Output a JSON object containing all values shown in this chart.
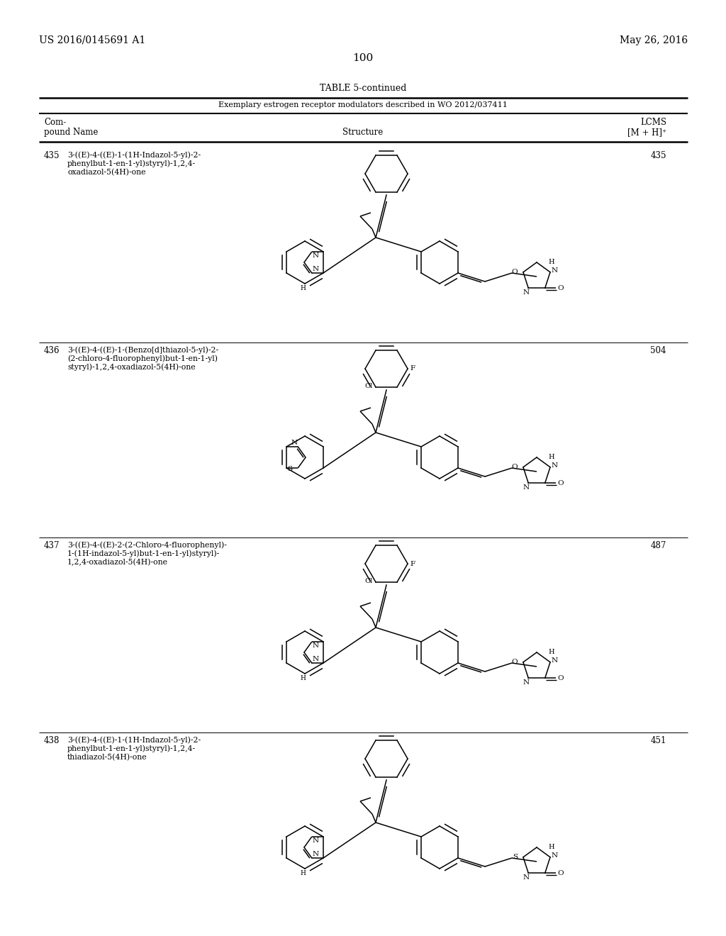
{
  "page_number": "100",
  "header_left": "US 2016/0145691 A1",
  "header_right": "May 26, 2016",
  "table_title": "TABLE 5-continued",
  "table_subtitle": "Exemplary estrogen receptor modulators described in WO 2012/037411",
  "compounds": [
    {
      "number": "435",
      "name": "3-((E)-4-((E)-1-(1H-Indazol-5-yl)-2-\nphenylbut-1-en-1-yl)styryl)-1,2,4-\noxadiazol-5(4H)-one",
      "lcms": "435",
      "left_group": "indazole",
      "top_group": "phenyl",
      "right_end": "oxadiazolone"
    },
    {
      "number": "436",
      "name": "3-((E)-4-((E)-1-(Benzo[d]thiazol-5-yl)-2-\n(2-chloro-4-fluorophenyl)but-1-en-1-yl)\nstyryl)-1,2,4-oxadiazol-5(4H)-one",
      "lcms": "504",
      "left_group": "benzothiazole",
      "top_group": "chlorofluorophenyl",
      "right_end": "oxadiazolone"
    },
    {
      "number": "437",
      "name": "3-((E)-4-((E)-2-(2-Chloro-4-fluorophenyl)-\n1-(1H-indazol-5-yl)but-1-en-1-yl)styryl)-\n1,2,4-oxadiazol-5(4H)-one",
      "lcms": "487",
      "left_group": "indazole",
      "top_group": "chlorofluorophenyl",
      "right_end": "oxadiazolone"
    },
    {
      "number": "438",
      "name": "3-((E)-4-((E)-1-(1H-Indazol-5-yl)-2-\nphenylbut-1-en-1-yl)styryl)-1,2,4-\nthiadiazol-5(4H)-one",
      "lcms": "451",
      "left_group": "indazole",
      "top_group": "phenyl",
      "right_end": "thiadiazolone"
    }
  ],
  "background_color": "#ffffff",
  "text_color": "#000000"
}
